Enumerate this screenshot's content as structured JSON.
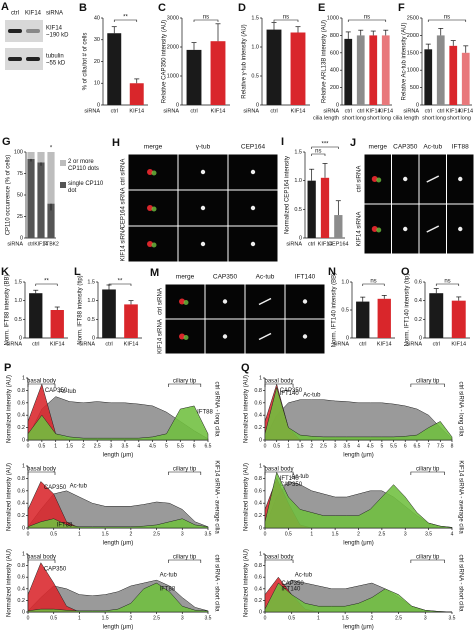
{
  "chart_data": [
    {
      "label": "B",
      "type": "bar",
      "ylabel": "% of cilia/tot # of cells",
      "xlabel": "siRNA",
      "categories": [
        "ctrl",
        "KIF14"
      ],
      "values": [
        33,
        10
      ],
      "errors": [
        3,
        2
      ],
      "colors": [
        "#1a1a1a",
        "#d9262b"
      ],
      "ylim": [
        0,
        40
      ],
      "yticks": [
        0,
        10,
        20,
        30,
        40
      ],
      "significance": [
        "**"
      ]
    },
    {
      "label": "C",
      "type": "bar",
      "ylabel": "Relative CAP350 intensity (AU)",
      "xlabel": "siRNA",
      "categories": [
        "ctrl",
        "KIF14"
      ],
      "values": [
        1900,
        2200
      ],
      "errors": [
        250,
        600
      ],
      "colors": [
        "#1a1a1a",
        "#d9262b"
      ],
      "ylim": [
        0,
        3000
      ],
      "yticks": [
        0,
        1000,
        2000,
        3000
      ],
      "significance": [
        "ns"
      ]
    },
    {
      "label": "D",
      "type": "bar",
      "ylabel": "Relative γ-tub intensity (AU)",
      "xlabel": "siRNA",
      "categories": [
        "ctrl",
        "KIF14"
      ],
      "values": [
        1.3,
        1.25
      ],
      "errors": [
        0.12,
        0.1
      ],
      "colors": [
        "#1a1a1a",
        "#d9262b"
      ],
      "ylim": [
        0,
        1.5
      ],
      "yticks": [
        0,
        0.5,
        {
          "value": 1,
          "label": "1.0"
        },
        1.5
      ],
      "significance": [
        "ns"
      ]
    },
    {
      "label": "E",
      "type": "bar",
      "ylabel": "Relative ARL13B intensity (AU)",
      "xlabel": "siRNA",
      "sublabel": "cilia length",
      "categories": [
        "ctrl",
        "ctrl",
        "KIF14",
        "KIF14"
      ],
      "subcategories": [
        "short",
        "long",
        "short",
        "long"
      ],
      "values": [
        760,
        800,
        800,
        800
      ],
      "errors": [
        80,
        60,
        50,
        60
      ],
      "colors": [
        "#1a1a1a",
        "#8c8c8c",
        "#d9262b",
        "#e8787b"
      ],
      "ylim": [
        0,
        1000
      ],
      "yticks": [
        0,
        200,
        400,
        600,
        800,
        1000
      ],
      "significance": [
        "ns"
      ]
    },
    {
      "label": "F",
      "type": "bar",
      "ylabel": "Relative Ac-tub intensity (AU)",
      "xlabel": "siRNA",
      "sublabel": "cilia length",
      "categories": [
        "ctrl",
        "ctrl",
        "KIF14",
        "KIF14"
      ],
      "subcategories": [
        "short",
        "long",
        "short",
        "long"
      ],
      "values": [
        1600,
        2000,
        1700,
        1500
      ],
      "errors": [
        150,
        200,
        150,
        200
      ],
      "colors": [
        "#1a1a1a",
        "#8c8c8c",
        "#d9262b",
        "#e8787b"
      ],
      "ylim": [
        0,
        2500
      ],
      "yticks": [
        0,
        500,
        1000,
        1500,
        2000,
        2500
      ],
      "significance": [
        "ns"
      ]
    },
    {
      "label": "G",
      "type": "stacked_bar",
      "ylabel": "CP110 occurrence (% of cells)",
      "xlabel": "siRNA",
      "categories": [
        "ctrl",
        "KIF14",
        "TTBK2"
      ],
      "series": [
        {
          "name": "single CP110 dot",
          "color": "#555555",
          "values": [
            92,
            88,
            40
          ],
          "errors": [
            3,
            4,
            8
          ]
        },
        {
          "name": "2 or more CP110 dots",
          "color": "#bdbdbd",
          "values": [
            8,
            12,
            60
          ]
        }
      ],
      "ylim": [
        0,
        100
      ],
      "yticks": [
        0,
        25,
        50,
        75,
        100
      ],
      "significance": [
        "*"
      ]
    },
    {
      "label": "I",
      "type": "bar",
      "ylabel": "Normalized CEP164 intensity",
      "xlabel": "siRNA",
      "categories": [
        "ctrl",
        "KIF14",
        "CEP164"
      ],
      "values": [
        1.0,
        1.05,
        0.4
      ],
      "errors": [
        0.2,
        0.25,
        0.25
      ],
      "colors": [
        "#1a1a1a",
        "#d9262b",
        "#8c8c8c"
      ],
      "ylim": [
        0,
        1.5
      ],
      "yticks": [
        0,
        0.5,
        {
          "value": 1,
          "label": "1.0"
        },
        1.5
      ],
      "significance": [
        "ns",
        "***"
      ]
    },
    {
      "label": "K",
      "type": "bar",
      "ylabel": "Norm. IFT88 intensity (BB)",
      "xlabel": "siRNA",
      "categories": [
        "ctrl",
        "KIF14"
      ],
      "values": [
        1.2,
        0.75
      ],
      "errors": [
        0.08,
        0.08
      ],
      "colors": [
        "#1a1a1a",
        "#d9262b"
      ],
      "ylim": [
        0,
        1.5
      ],
      "yticks": [
        0,
        0.5,
        {
          "value": 1,
          "label": "1.0"
        },
        1.5
      ],
      "significance": [
        "**"
      ]
    },
    {
      "label": "L",
      "type": "bar",
      "ylabel": "Norm. IFT88 intensity (tip)",
      "xlabel": "siRNA",
      "categories": [
        "ctrl",
        "KIF14"
      ],
      "values": [
        1.3,
        0.9
      ],
      "errors": [
        0.12,
        0.1
      ],
      "colors": [
        "#1a1a1a",
        "#d9262b"
      ],
      "ylim": [
        0,
        1.5
      ],
      "yticks": [
        0,
        0.5,
        {
          "value": 1,
          "label": "1.0"
        },
        1.5
      ],
      "significance": [
        "**"
      ]
    },
    {
      "label": "N",
      "type": "bar",
      "ylabel": "Norm. IFT140 intensity (BB)",
      "xlabel": "siRNA",
      "categories": [
        "ctrl",
        "KIF14"
      ],
      "values": [
        0.65,
        0.7
      ],
      "errors": [
        0.08,
        0.06
      ],
      "colors": [
        "#1a1a1a",
        "#d9262b"
      ],
      "ylim": [
        0,
        1
      ],
      "yticks": [
        0,
        0.5,
        {
          "value": 1,
          "label": "1.0"
        }
      ],
      "significance": [
        "ns"
      ]
    },
    {
      "label": "O",
      "type": "bar",
      "ylabel": "Norm. IFT140 intensity (tip)",
      "xlabel": "siRNA",
      "categories": [
        "ctrl",
        "KIF14"
      ],
      "values": [
        0.48,
        0.4
      ],
      "errors": [
        0.05,
        0.04
      ],
      "colors": [
        "#1a1a1a",
        "#d9262b"
      ],
      "ylim": [
        0,
        0.6
      ],
      "yticks": [
        0,
        0.2,
        0.4,
        0.6
      ],
      "significance": [
        "ns"
      ]
    },
    {
      "label": "P",
      "type": "area",
      "side_label": "ctrl siRNA - long cilia",
      "ylabel": "Normalized intensity (AU)",
      "xlabel": "length (μm)",
      "annotations": [
        "basal body",
        "ciliary tip"
      ],
      "x": [
        0,
        0.5,
        1,
        1.5,
        2,
        2.5,
        3,
        3.5,
        4,
        4.5,
        5,
        5.5,
        6,
        6.5
      ],
      "series": [
        {
          "name": "Ac-tub",
          "color": "#8c8c8c",
          "values": [
            0.05,
            0.5,
            0.7,
            0.62,
            0.6,
            0.62,
            0.6,
            0.6,
            0.58,
            0.55,
            0.45,
            0.3,
            0.15,
            0.02
          ]
        },
        {
          "name": "CAP350",
          "color": "#d9262b",
          "values": [
            0.3,
            0.9,
            0.1,
            0,
            0,
            0,
            0,
            0,
            0,
            0,
            0,
            0,
            0,
            0
          ]
        },
        {
          "name": "IFT88",
          "color": "#6fbf3f",
          "values": [
            0.1,
            0.4,
            0.1,
            0.05,
            0.03,
            0.03,
            0.03,
            0.03,
            0.03,
            0.05,
            0.1,
            0.5,
            0.55,
            0.1
          ]
        }
      ],
      "xlim": [
        0,
        6.5
      ],
      "xticks": [
        0,
        0.5,
        1,
        1.5,
        2,
        2.5,
        3,
        3.5,
        4,
        4.5,
        5,
        5.5,
        6,
        6.5
      ],
      "ylim": [
        0,
        1
      ],
      "yticks": [
        0,
        0.2,
        0.4,
        0.6,
        0.8,
        1
      ]
    },
    {
      "type": "area",
      "side_label": "KIF14 siRNA - average cilia",
      "ylabel": "Normalized intensity (AU)",
      "xlabel": "length (μm)",
      "annotations": [
        "basal body",
        "ciliary tip"
      ],
      "x": [
        0,
        0.25,
        0.5,
        0.75,
        1,
        1.25,
        1.5,
        1.75,
        2,
        2.25,
        2.5,
        2.75,
        3,
        3.25,
        3.5
      ],
      "series": [
        {
          "name": "Ac-tub",
          "color": "#8c8c8c",
          "values": [
            0.02,
            0.3,
            0.55,
            0.6,
            0.5,
            0.4,
            0.35,
            0.35,
            0.35,
            0.38,
            0.42,
            0.4,
            0.3,
            0.1,
            0.02
          ]
        },
        {
          "name": "CAP350",
          "color": "#d9262b",
          "values": [
            0.3,
            0.75,
            0.55,
            0.1,
            0,
            0,
            0,
            0,
            0,
            0,
            0,
            0,
            0,
            0,
            0
          ]
        },
        {
          "name": "IFT88",
          "color": "#6fbf3f",
          "values": [
            0.02,
            0.1,
            0.15,
            0.05,
            0.02,
            0.02,
            0.02,
            0.02,
            0.02,
            0.03,
            0.05,
            0.1,
            0.15,
            0.05,
            0.02
          ]
        }
      ],
      "xlim": [
        0,
        3.5
      ],
      "xticks": [
        0,
        0.5,
        1,
        1.5,
        2,
        2.5,
        3,
        3.5
      ],
      "ylim": [
        0,
        1
      ],
      "yticks": [
        0,
        0.2,
        0.4,
        0.6,
        0.8,
        1
      ]
    },
    {
      "type": "area",
      "side_label": "ctrl siRNA - short cilia",
      "ylabel": "Normalized intensity (AU)",
      "xlabel": "length (μm)",
      "annotations": [
        "basal body",
        "ciliary tip"
      ],
      "x": [
        0,
        0.25,
        0.5,
        0.75,
        1,
        1.25,
        1.5,
        1.75,
        2,
        2.25,
        2.5,
        2.75,
        3,
        3.25,
        3.5
      ],
      "series": [
        {
          "name": "Ac-tub",
          "color": "#8c8c8c",
          "values": [
            0.02,
            0.25,
            0.45,
            0.4,
            0.3,
            0.28,
            0.3,
            0.35,
            0.45,
            0.5,
            0.55,
            0.45,
            0.25,
            0.08,
            0.02
          ]
        },
        {
          "name": "CAP350",
          "color": "#d9262b",
          "values": [
            0.3,
            0.85,
            0.5,
            0.1,
            0,
            0,
            0,
            0,
            0,
            0,
            0,
            0,
            0,
            0,
            0
          ]
        },
        {
          "name": "IFT88",
          "color": "#6fbf3f",
          "values": [
            0.02,
            0.05,
            0.05,
            0.03,
            0.02,
            0.02,
            0.02,
            0.05,
            0.15,
            0.4,
            0.5,
            0.35,
            0.1,
            0.03,
            0.02
          ]
        }
      ],
      "xlim": [
        0,
        3.5
      ],
      "xticks": [
        0,
        0.5,
        1,
        1.5,
        2,
        2.5,
        3,
        3.5
      ],
      "ylim": [
        0,
        1
      ],
      "yticks": [
        0,
        0.2,
        0.4,
        0.6,
        0.8,
        1
      ]
    },
    {
      "label": "Q",
      "type": "area",
      "side_label": "ctrl siRNA - long cilia",
      "ylabel": "Normalized intensity (AU)",
      "xlabel": "length (μm)",
      "annotations": [
        "basal body",
        "ciliary tip"
      ],
      "x": [
        0,
        0.5,
        1,
        1.5,
        2,
        2.5,
        3,
        3.5,
        4,
        4.5,
        5,
        5.5,
        6,
        6.5,
        7,
        7.5,
        8
      ],
      "series": [
        {
          "name": "Ac-tub",
          "color": "#8c8c8c",
          "values": [
            0.02,
            0.4,
            0.6,
            0.65,
            0.65,
            0.65,
            0.63,
            0.62,
            0.6,
            0.6,
            0.6,
            0.58,
            0.55,
            0.5,
            0.4,
            0.2,
            0.02
          ]
        },
        {
          "name": "CAP350",
          "color": "#d9262b",
          "values": [
            0.3,
            0.9,
            0.2,
            0,
            0,
            0,
            0,
            0,
            0,
            0,
            0,
            0,
            0,
            0,
            0,
            0,
            0
          ]
        },
        {
          "name": "IFT140",
          "color": "#6fbf3f",
          "values": [
            0.1,
            0.85,
            0.2,
            0.08,
            0.06,
            0.05,
            0.05,
            0.05,
            0.05,
            0.05,
            0.05,
            0.05,
            0.06,
            0.08,
            0.2,
            0.3,
            0.05
          ]
        }
      ],
      "xlim": [
        0,
        8
      ],
      "xticks": [
        0,
        0.5,
        1,
        1.5,
        2,
        2.5,
        3,
        3.5,
        4,
        4.5,
        5,
        5.5,
        6,
        6.5,
        7,
        7.5,
        8
      ],
      "ylim": [
        0,
        1
      ],
      "yticks": [
        0,
        0.2,
        0.4,
        0.6,
        0.8,
        1
      ]
    },
    {
      "type": "area",
      "side_label": "KIF14 siRNA - average cilia",
      "ylabel": "Normalized intensity (AU)",
      "xlabel": "length (μm)",
      "annotations": [
        "basal body",
        "ciliary tip"
      ],
      "x": [
        0,
        0.25,
        0.5,
        0.75,
        1,
        1.25,
        1.5,
        1.75,
        2,
        2.25,
        2.5,
        2.75,
        3,
        3.25,
        3.5,
        3.75,
        4
      ],
      "series": [
        {
          "name": "Ac-tub",
          "color": "#8c8c8c",
          "values": [
            0.02,
            0.5,
            0.75,
            0.7,
            0.6,
            0.55,
            0.5,
            0.5,
            0.55,
            0.6,
            0.6,
            0.5,
            0.35,
            0.2,
            0.08,
            0.03,
            0.01
          ]
        },
        {
          "name": "CAP350",
          "color": "#d9262b",
          "values": [
            0.3,
            0.8,
            0.4,
            0.05,
            0,
            0,
            0,
            0,
            0,
            0,
            0,
            0,
            0,
            0,
            0,
            0,
            0
          ]
        },
        {
          "name": "IFT140",
          "color": "#6fbf3f",
          "values": [
            0.1,
            0.9,
            0.5,
            0.3,
            0.25,
            0.2,
            0.2,
            0.2,
            0.2,
            0.3,
            0.5,
            0.7,
            0.5,
            0.25,
            0.08,
            0.03,
            0.01
          ]
        }
      ],
      "xlim": [
        0,
        4
      ],
      "xticks": [
        0,
        0.5,
        1,
        1.5,
        2,
        2.5,
        3,
        3.5,
        4
      ],
      "ylim": [
        0,
        1
      ],
      "yticks": [
        0,
        0.2,
        0.4,
        0.6,
        0.8,
        1
      ]
    },
    {
      "type": "area",
      "side_label": "ctrl siRNA - short cilia",
      "ylabel": "Normalized intensity (AU)",
      "xlabel": "length (μm)",
      "annotations": [
        "basal body",
        "ciliary tip"
      ],
      "x": [
        0,
        0.25,
        0.5,
        0.75,
        1,
        1.25,
        1.5,
        1.75,
        2,
        2.25,
        2.5,
        2.75,
        3,
        3.25,
        3.5
      ],
      "series": [
        {
          "name": "Ac-tub",
          "color": "#8c8c8c",
          "values": [
            0.02,
            0.4,
            0.55,
            0.5,
            0.45,
            0.4,
            0.4,
            0.45,
            0.5,
            0.4,
            0.25,
            0.1,
            0.03,
            0.01,
            0
          ]
        },
        {
          "name": "CAP350",
          "color": "#d9262b",
          "values": [
            0.3,
            0.6,
            0.3,
            0.05,
            0,
            0,
            0,
            0,
            0,
            0,
            0,
            0,
            0,
            0,
            0
          ]
        },
        {
          "name": "IFT140",
          "color": "#6fbf3f",
          "values": [
            0.05,
            0.5,
            0.3,
            0.15,
            0.1,
            0.1,
            0.1,
            0.15,
            0.25,
            0.4,
            0.3,
            0.1,
            0.03,
            0.01,
            0
          ]
        }
      ],
      "xlim": [
        0,
        3.5
      ],
      "xticks": [
        0,
        0.5,
        1,
        1.5,
        2,
        2.5,
        3,
        3.5
      ],
      "ylim": [
        0,
        1
      ],
      "yticks": [
        0,
        0.2,
        0.4,
        0.6,
        0.8,
        1
      ]
    }
  ],
  "blot": {
    "label": "A",
    "lanes": [
      "ctrl",
      "KIF14"
    ],
    "lanes_title": "siRNA",
    "bands": [
      {
        "name": "KIF14",
        "size": "~190 kD"
      },
      {
        "name": "tubulin",
        "size": "~55 kD"
      }
    ]
  },
  "micrographs": [
    {
      "label": "H",
      "columns": [
        "merge",
        "γ-tub",
        "CEP164"
      ],
      "column_colors": [
        "#000000",
        "#d9262b",
        "#4f9e2a"
      ],
      "rows": [
        "ctrl siRNA",
        "CEP164 siRNA",
        "KIF14 siRNA"
      ]
    },
    {
      "label": "J",
      "columns": [
        "merge",
        "CAP350",
        "Ac-tub",
        "IFT88"
      ],
      "column_colors": [
        "#000000",
        "#e0b020",
        "#d9262b",
        "#4f9e2a"
      ],
      "rows": [
        "ctrl siRNA",
        "KIF14 siRNA"
      ]
    },
    {
      "label": "M",
      "columns": [
        "merge",
        "CAP350",
        "Ac-tub",
        "IFT140"
      ],
      "column_colors": [
        "#000000",
        "#e0b020",
        "#d9262b",
        "#4f9e2a"
      ],
      "rows": [
        "ctrl siRNA",
        "KIF14 siRNA"
      ]
    }
  ]
}
